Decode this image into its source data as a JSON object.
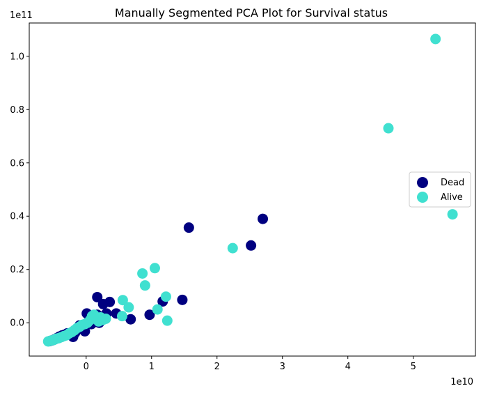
{
  "chart_data": {
    "type": "scatter",
    "title": "Manually Segmented PCA Plot for Survival status",
    "xlabel": "",
    "ylabel": "",
    "x_offset_text": "1e10",
    "y_offset_text": "1e11",
    "xlim": [
      -0.87,
      5.95
    ],
    "ylim": [
      -0.125,
      1.125
    ],
    "x_ticks": [
      0,
      1,
      2,
      3,
      4,
      5
    ],
    "x_tick_labels": [
      "0",
      "1",
      "2",
      "3",
      "4",
      "5"
    ],
    "y_ticks": [
      0.0,
      0.2,
      0.4,
      0.6,
      0.8,
      1.0
    ],
    "y_tick_labels": [
      "0.0",
      "0.2",
      "0.4",
      "0.6",
      "0.8",
      "1.0"
    ],
    "grid": false,
    "legend_position": "center-right",
    "series": [
      {
        "name": "Dead",
        "color": "#000080",
        "points": [
          [
            -0.56,
            -0.069
          ],
          [
            -0.52,
            -0.066
          ],
          [
            -0.48,
            -0.062
          ],
          [
            -0.45,
            -0.058
          ],
          [
            -0.41,
            -0.052
          ],
          [
            -0.37,
            -0.048
          ],
          [
            -0.33,
            -0.045
          ],
          [
            -0.29,
            -0.04
          ],
          [
            -0.2,
            -0.053
          ],
          [
            -0.17,
            -0.038
          ],
          [
            -0.13,
            -0.025
          ],
          [
            -0.1,
            -0.01
          ],
          [
            -0.06,
            -0.02
          ],
          [
            -0.02,
            -0.032
          ],
          [
            0.01,
            0.035
          ],
          [
            0.04,
            0.005
          ],
          [
            0.08,
            -0.005
          ],
          [
            0.11,
            0.022
          ],
          [
            0.14,
            0.01
          ],
          [
            0.17,
            0.03
          ],
          [
            0.2,
            0.0
          ],
          [
            0.26,
            0.07
          ],
          [
            0.31,
            0.035
          ],
          [
            0.36,
            0.078
          ],
          [
            0.46,
            0.035
          ],
          [
            0.17,
            0.096
          ],
          [
            0.68,
            0.013
          ],
          [
            0.97,
            0.03
          ],
          [
            1.17,
            0.08
          ],
          [
            1.47,
            0.086
          ],
          [
            1.57,
            0.357
          ],
          [
            2.52,
            0.29
          ],
          [
            2.7,
            0.39
          ]
        ]
      },
      {
        "name": "Alive",
        "color": "#40e0d0",
        "points": [
          [
            -0.58,
            -0.07
          ],
          [
            -0.54,
            -0.067
          ],
          [
            -0.5,
            -0.065
          ],
          [
            -0.46,
            -0.06
          ],
          [
            -0.42,
            -0.058
          ],
          [
            -0.38,
            -0.054
          ],
          [
            -0.34,
            -0.05
          ],
          [
            -0.3,
            -0.047
          ],
          [
            -0.26,
            -0.04
          ],
          [
            -0.22,
            -0.035
          ],
          [
            -0.18,
            -0.028
          ],
          [
            -0.14,
            -0.02
          ],
          [
            -0.1,
            -0.015
          ],
          [
            -0.06,
            -0.008
          ],
          [
            -0.02,
            -0.005
          ],
          [
            0.02,
            0.0
          ],
          [
            0.06,
            0.01
          ],
          [
            0.09,
            0.025
          ],
          [
            0.12,
            0.03
          ],
          [
            0.15,
            0.018
          ],
          [
            0.19,
            0.005
          ],
          [
            0.22,
            0.02
          ],
          [
            0.25,
            0.01
          ],
          [
            0.3,
            0.015
          ],
          [
            0.55,
            0.025
          ],
          [
            0.56,
            0.085
          ],
          [
            0.65,
            0.058
          ],
          [
            0.86,
            0.185
          ],
          [
            0.9,
            0.14
          ],
          [
            1.05,
            0.205
          ],
          [
            1.09,
            0.05
          ],
          [
            1.22,
            0.098
          ],
          [
            1.24,
            0.008
          ],
          [
            2.24,
            0.28
          ],
          [
            4.62,
            0.73
          ],
          [
            5.34,
            1.065
          ],
          [
            5.6,
            0.407
          ]
        ]
      }
    ]
  }
}
